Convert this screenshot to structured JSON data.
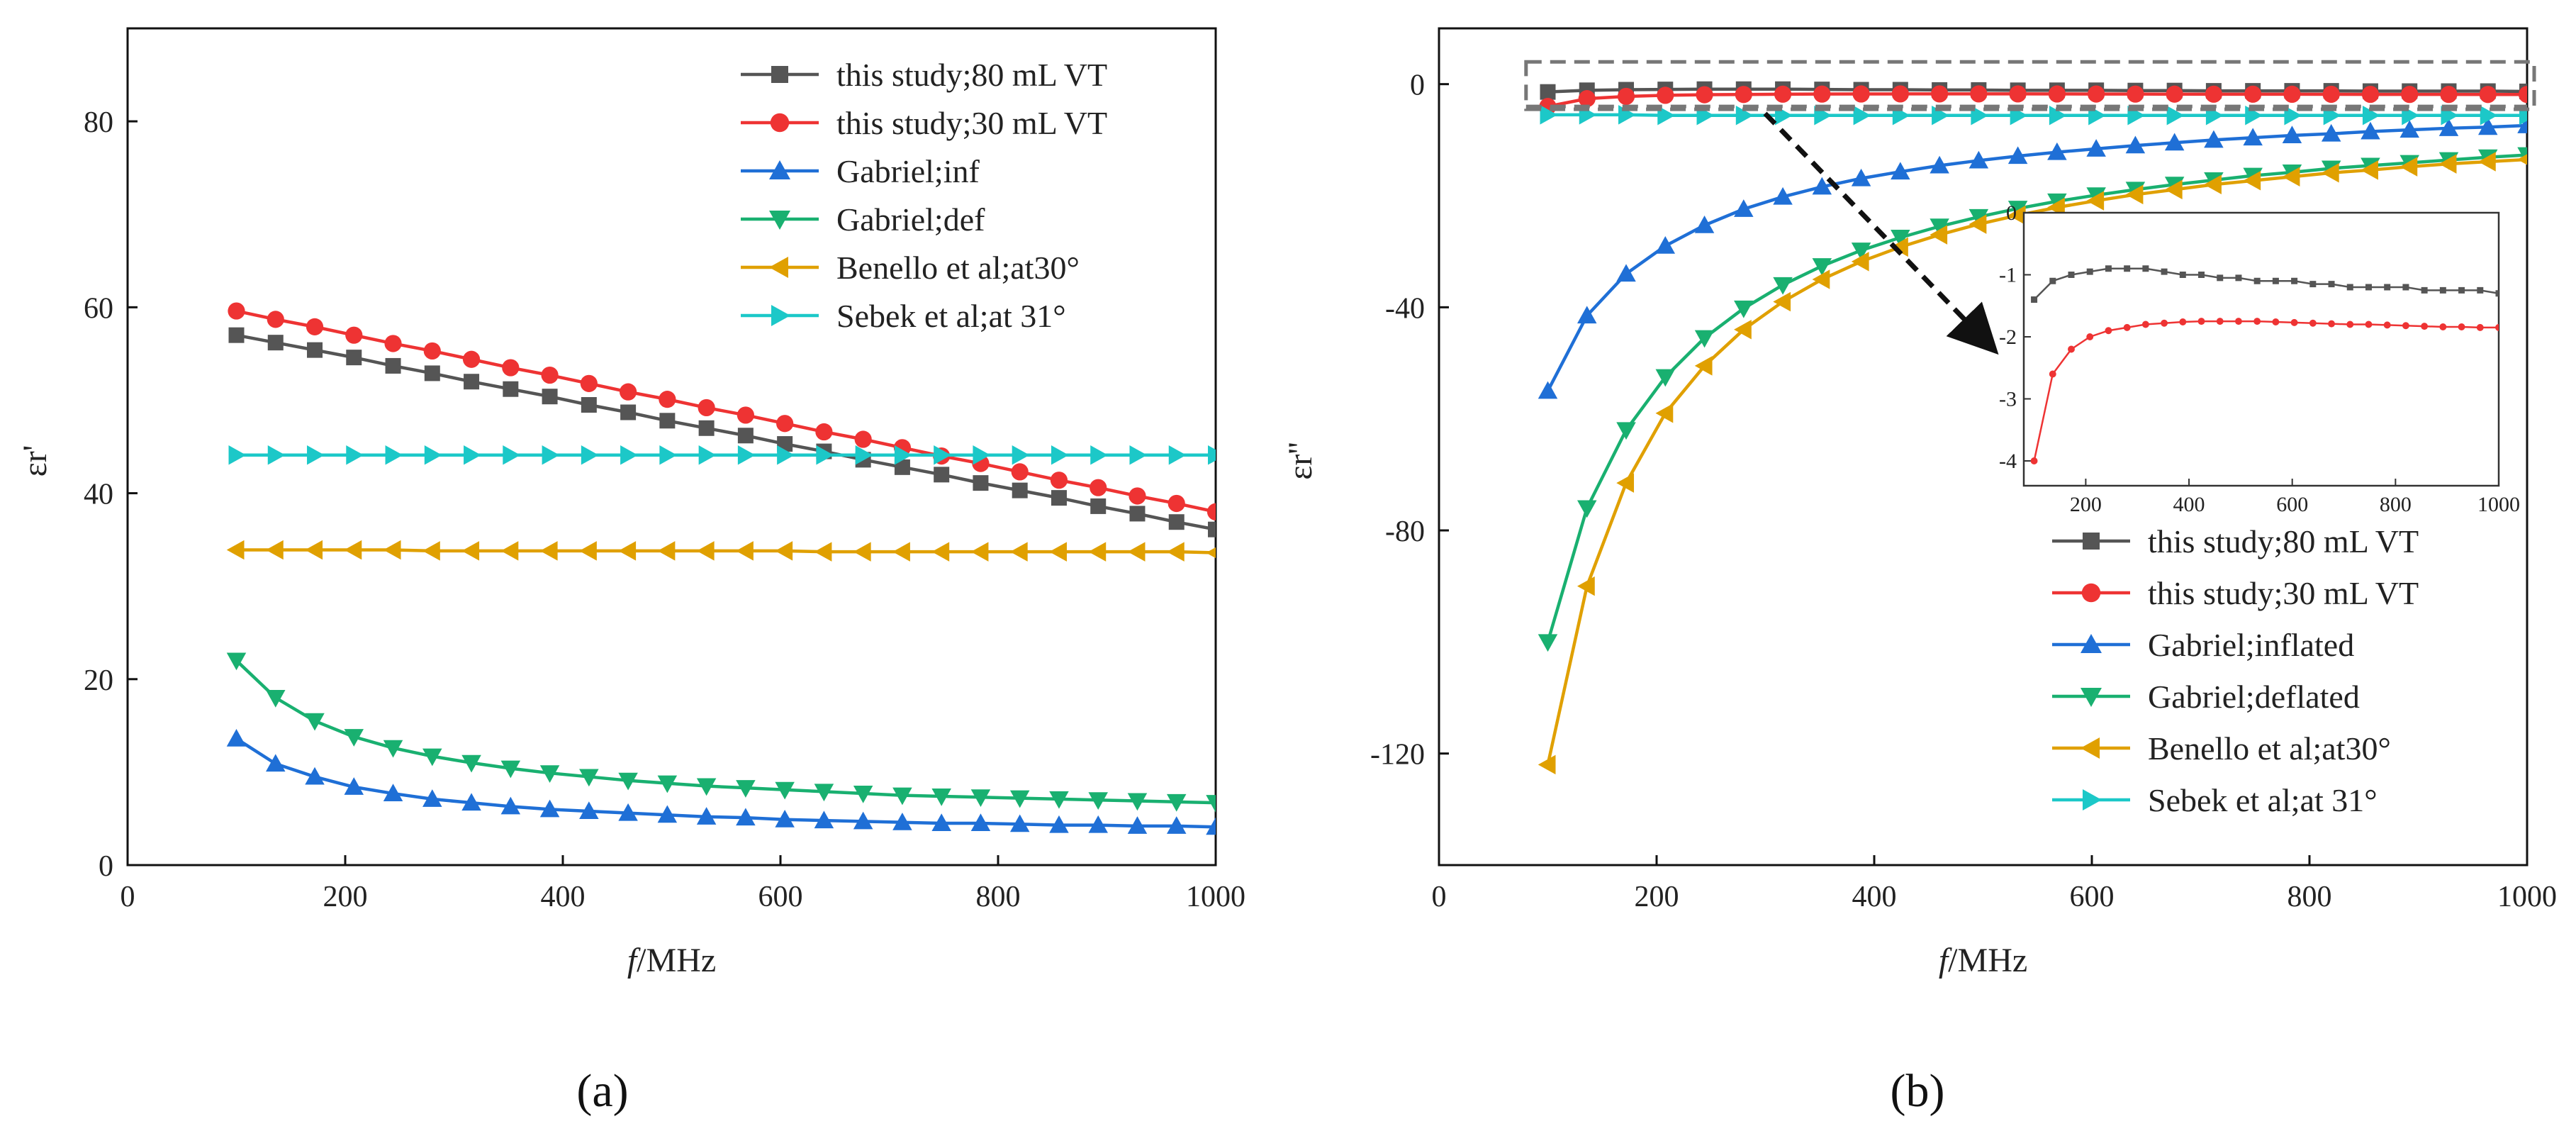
{
  "panels": {
    "a": {
      "label": "(a)"
    },
    "b": {
      "label": "(b)"
    }
  },
  "chart_data": [
    {
      "type": "line",
      "panel": "a",
      "xlabel": "f/MHz",
      "ylabel": "εr'",
      "xlim": [
        0,
        1000
      ],
      "ylim": [
        0,
        90
      ],
      "xticks": [
        0,
        200,
        400,
        600,
        800,
        1000
      ],
      "yticks": [
        0,
        20,
        40,
        60,
        80
      ],
      "legend_position": "top-right",
      "x": [
        100,
        136,
        172,
        208,
        244,
        280,
        316,
        352,
        388,
        424,
        460,
        496,
        532,
        568,
        604,
        640,
        676,
        712,
        748,
        784,
        820,
        856,
        892,
        928,
        964,
        1000
      ],
      "series": [
        {
          "name": "this study;80 mL VT",
          "color": "#555555",
          "marker": "square",
          "values": [
            57.0,
            56.2,
            55.4,
            54.6,
            53.7,
            52.9,
            52.0,
            51.2,
            50.4,
            49.5,
            48.7,
            47.8,
            47.0,
            46.2,
            45.3,
            44.5,
            43.6,
            42.8,
            42.0,
            41.1,
            40.3,
            39.5,
            38.6,
            37.8,
            36.9,
            36.1
          ]
        },
        {
          "name": "this study;30 mL VT",
          "color": "#ee3333",
          "marker": "circle",
          "values": [
            59.6,
            58.7,
            57.9,
            57.0,
            56.1,
            55.3,
            54.4,
            53.5,
            52.7,
            51.8,
            50.9,
            50.1,
            49.2,
            48.4,
            47.5,
            46.6,
            45.8,
            44.9,
            44.0,
            43.2,
            42.3,
            41.4,
            40.6,
            39.7,
            38.9,
            38.0
          ]
        },
        {
          "name": "Gabriel;inf",
          "color": "#1f6fd6",
          "marker": "triangle-up",
          "values": [
            13.6,
            10.9,
            9.5,
            8.4,
            7.7,
            7.1,
            6.7,
            6.3,
            6.0,
            5.8,
            5.6,
            5.4,
            5.2,
            5.1,
            4.9,
            4.8,
            4.7,
            4.6,
            4.5,
            4.5,
            4.4,
            4.3,
            4.3,
            4.2,
            4.2,
            4.1
          ]
        },
        {
          "name": "Gabriel;def",
          "color": "#19b070",
          "marker": "triangle-down",
          "values": [
            22.0,
            18.0,
            15.5,
            13.8,
            12.6,
            11.7,
            11.0,
            10.4,
            9.9,
            9.5,
            9.1,
            8.8,
            8.5,
            8.3,
            8.1,
            7.9,
            7.7,
            7.5,
            7.4,
            7.3,
            7.2,
            7.1,
            7.0,
            6.9,
            6.8,
            6.7
          ]
        },
        {
          "name": "Benello et al;at30°",
          "color": "#e0a000",
          "marker": "triangle-left",
          "values": [
            33.9,
            33.9,
            33.9,
            33.9,
            33.9,
            33.8,
            33.8,
            33.8,
            33.8,
            33.8,
            33.8,
            33.8,
            33.8,
            33.8,
            33.8,
            33.7,
            33.7,
            33.7,
            33.7,
            33.7,
            33.7,
            33.7,
            33.7,
            33.7,
            33.7,
            33.6
          ]
        },
        {
          "name": "Sebek et al;at 31°",
          "color": "#1cc8c8",
          "marker": "triangle-right",
          "values": [
            44.1,
            44.1,
            44.1,
            44.1,
            44.1,
            44.1,
            44.1,
            44.1,
            44.1,
            44.1,
            44.1,
            44.1,
            44.1,
            44.1,
            44.1,
            44.1,
            44.1,
            44.1,
            44.1,
            44.1,
            44.1,
            44.1,
            44.1,
            44.1,
            44.1,
            44.1
          ]
        }
      ]
    },
    {
      "type": "line",
      "panel": "b",
      "xlabel": "f/MHz",
      "ylabel": "εr''",
      "xlim": [
        0,
        1000
      ],
      "ylim": [
        -140,
        10
      ],
      "xticks": [
        0,
        200,
        400,
        600,
        800,
        1000
      ],
      "yticks": [
        0,
        -40,
        -80,
        -120
      ],
      "legend_position": "bottom-right",
      "x": [
        100,
        136,
        172,
        208,
        244,
        280,
        316,
        352,
        388,
        424,
        460,
        496,
        532,
        568,
        604,
        640,
        676,
        712,
        748,
        784,
        820,
        856,
        892,
        928,
        964,
        1000
      ],
      "series": [
        {
          "name": "this study;80 mL VT",
          "color": "#555555",
          "marker": "square",
          "values": [
            -1.4,
            -1.1,
            -1.0,
            -0.95,
            -0.9,
            -0.9,
            -0.9,
            -0.95,
            -1.0,
            -1.0,
            -1.05,
            -1.05,
            -1.1,
            -1.1,
            -1.1,
            -1.15,
            -1.15,
            -1.2,
            -1.2,
            -1.2,
            -1.2,
            -1.25,
            -1.25,
            -1.25,
            -1.25,
            -1.3
          ]
        },
        {
          "name": "this study;30 mL VT",
          "color": "#ee3333",
          "marker": "circle",
          "values": [
            -4.0,
            -2.6,
            -2.2,
            -2.0,
            -1.9,
            -1.85,
            -1.8,
            -1.78,
            -1.76,
            -1.75,
            -1.75,
            -1.75,
            -1.75,
            -1.76,
            -1.77,
            -1.78,
            -1.79,
            -1.8,
            -1.8,
            -1.81,
            -1.82,
            -1.83,
            -1.84,
            -1.84,
            -1.85,
            -1.85
          ]
        },
        {
          "name": "Gabriel;inflated",
          "color": "#1f6fd6",
          "marker": "triangle-up",
          "values": [
            -55.0,
            -41.5,
            -34.0,
            -29.0,
            -25.3,
            -22.4,
            -20.2,
            -18.4,
            -16.9,
            -15.7,
            -14.6,
            -13.7,
            -12.9,
            -12.2,
            -11.6,
            -11.0,
            -10.5,
            -10.0,
            -9.6,
            -9.2,
            -8.9,
            -8.5,
            -8.2,
            -7.9,
            -7.7,
            -7.4
          ]
        },
        {
          "name": "Gabriel;deflated",
          "color": "#19b070",
          "marker": "triangle-down",
          "values": [
            -100.0,
            -76.0,
            -62.0,
            -52.5,
            -45.5,
            -40.2,
            -36.0,
            -32.6,
            -29.8,
            -27.5,
            -25.5,
            -23.8,
            -22.3,
            -21.0,
            -19.9,
            -18.9,
            -18.0,
            -17.2,
            -16.4,
            -15.8,
            -15.1,
            -14.6,
            -14.1,
            -13.6,
            -13.1,
            -12.7
          ]
        },
        {
          "name": "Benello et al;at30°",
          "color": "#e0a000",
          "marker": "triangle-left",
          "values": [
            -122.0,
            -90.0,
            -71.5,
            -59.0,
            -50.5,
            -44.0,
            -39.0,
            -35.0,
            -31.8,
            -29.2,
            -27.0,
            -25.1,
            -23.5,
            -22.1,
            -20.9,
            -19.8,
            -18.9,
            -18.0,
            -17.3,
            -16.6,
            -15.9,
            -15.4,
            -14.8,
            -14.3,
            -13.9,
            -13.5
          ]
        },
        {
          "name": "Sebek et al;at 31°",
          "color": "#1cc8c8",
          "marker": "triangle-right",
          "values": [
            -5.5,
            -5.5,
            -5.5,
            -5.6,
            -5.6,
            -5.6,
            -5.6,
            -5.6,
            -5.6,
            -5.6,
            -5.6,
            -5.6,
            -5.6,
            -5.6,
            -5.6,
            -5.6,
            -5.6,
            -5.6,
            -5.6,
            -5.6,
            -5.6,
            -5.6,
            -5.6,
            -5.6,
            -5.6,
            -5.6
          ]
        }
      ],
      "inset": {
        "xlim": [
          80,
          1000
        ],
        "ylim": [
          -4.4,
          0
        ],
        "xticks": [
          200,
          400,
          600,
          800,
          1000
        ],
        "yticks": [
          0,
          -1,
          -2,
          -3,
          -4
        ],
        "series_indices": [
          0,
          1
        ]
      }
    }
  ]
}
